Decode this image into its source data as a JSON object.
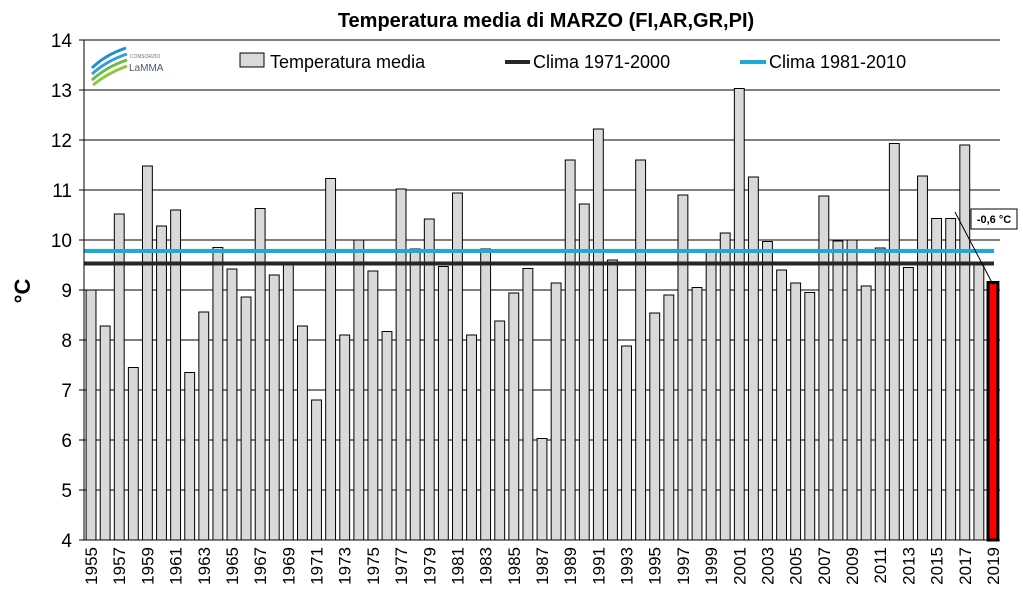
{
  "chart_data": {
    "type": "bar",
    "title": "Temperatura media di MARZO (FI,AR,GR,PI)",
    "ylabel": "°C",
    "xlabel": "",
    "ylim": [
      4,
      14
    ],
    "yticks": [
      "4",
      "5",
      "6",
      "7",
      "8",
      "9",
      "10",
      "11",
      "12",
      "13",
      "14"
    ],
    "grid": "horizontal",
    "legend_position": "top",
    "logo": {
      "small": "CONSORZIO",
      "big": "LaMMA"
    },
    "categories": [
      1955,
      1956,
      1957,
      1958,
      1959,
      1960,
      1961,
      1962,
      1963,
      1964,
      1965,
      1966,
      1967,
      1968,
      1969,
      1970,
      1971,
      1972,
      1973,
      1974,
      1975,
      1976,
      1977,
      1978,
      1979,
      1980,
      1981,
      1982,
      1983,
      1984,
      1985,
      1986,
      1987,
      1988,
      1989,
      1990,
      1991,
      1992,
      1993,
      1994,
      1995,
      1996,
      1997,
      1998,
      1999,
      2000,
      2001,
      2002,
      2003,
      2004,
      2005,
      2006,
      2007,
      2008,
      2009,
      2010,
      2011,
      2012,
      2013,
      2014,
      2015,
      2016,
      2017,
      2018,
      2019
    ],
    "xtick_labels": [
      "1955",
      "1957",
      "1959",
      "1961",
      "1963",
      "1965",
      "1967",
      "1969",
      "1971",
      "1973",
      "1975",
      "1977",
      "1979",
      "1981",
      "1983",
      "1985",
      "1987",
      "1989",
      "1991",
      "1993",
      "1995",
      "1997",
      "1999",
      "2001",
      "2003",
      "2005",
      "2007",
      "2009",
      "2011",
      "2013",
      "2015",
      "2017",
      "2019"
    ],
    "series": [
      {
        "name": "Temperatura media",
        "color": "#d9d9d9",
        "highlight_color": "#ff0000",
        "highlight_category": 2019,
        "values": [
          9.0,
          8.28,
          10.52,
          7.45,
          11.48,
          10.28,
          10.6,
          7.35,
          8.56,
          9.85,
          9.42,
          8.86,
          10.63,
          9.3,
          9.52,
          8.28,
          6.8,
          11.23,
          8.1,
          10.0,
          9.38,
          8.17,
          11.02,
          9.82,
          10.42,
          9.47,
          10.94,
          8.1,
          9.82,
          8.38,
          8.94,
          9.43,
          6.03,
          9.14,
          11.6,
          10.72,
          12.22,
          9.6,
          7.88,
          11.6,
          8.54,
          8.9,
          10.9,
          9.05,
          9.75,
          10.14,
          13.03,
          11.26,
          9.97,
          9.4,
          9.14,
          8.95,
          10.88,
          9.98,
          10.0,
          9.08,
          9.84,
          11.93,
          9.45,
          11.28,
          10.43,
          10.43,
          11.9,
          9.5,
          9.15
        ]
      },
      {
        "name": "Clima 1971-2000",
        "type": "line",
        "color": "#262626",
        "value": 9.53
      },
      {
        "name": "Clima 1981-2010",
        "type": "line",
        "color": "#1fa8d8",
        "value": 9.78
      }
    ],
    "annotations": [
      {
        "text": "-0,6 °C",
        "target_category": 2019
      }
    ]
  }
}
